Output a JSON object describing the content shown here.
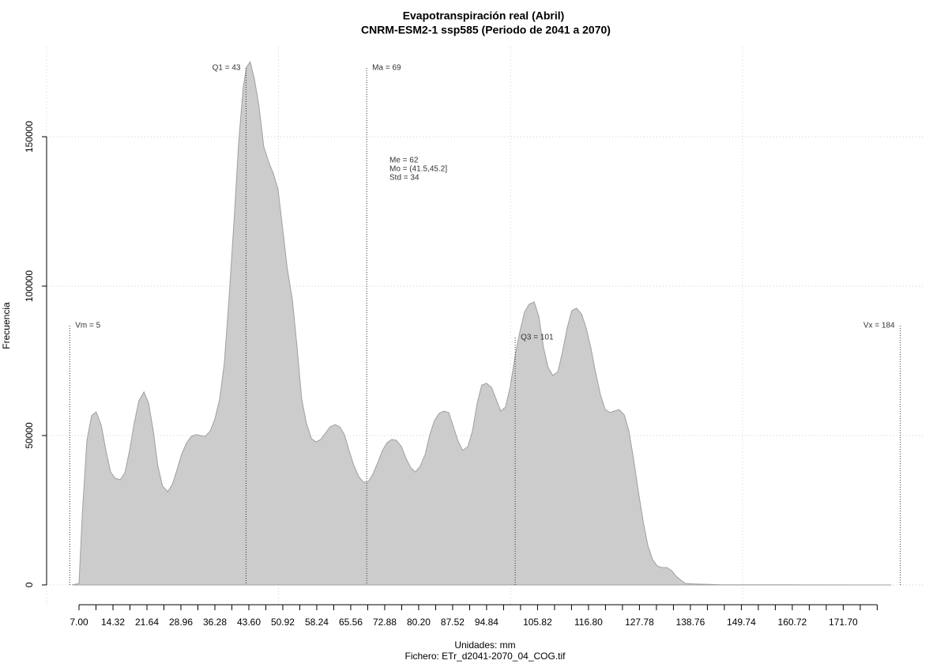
{
  "chart_data": {
    "type": "area",
    "title": "Evapotranspiración real (Abril)",
    "subtitle": "CNRM-ESM2-1 ssp585 (Periodo de 2041 a 2070)",
    "xlabel": "Unidades: mm",
    "caption": "Fichero: ETr_d2041-2070_04_COG.tif",
    "ylabel": "Frecuencia",
    "color": "#cccccc",
    "line_color": "#a0a0a0",
    "xlim": [
      0,
      189
    ],
    "ylim": [
      -6600,
      180000
    ],
    "yticks": [
      0,
      50000,
      100000,
      150000
    ],
    "xticks": [
      {
        "value": 7,
        "label": "7.00"
      },
      {
        "value": 14.32,
        "label": "14.32"
      },
      {
        "value": 21.64,
        "label": "21.64"
      },
      {
        "value": 28.96,
        "label": "28.96"
      },
      {
        "value": 36.28,
        "label": "36.28"
      },
      {
        "value": 43.6,
        "label": "43.60"
      },
      {
        "value": 50.92,
        "label": "50.92"
      },
      {
        "value": 58.24,
        "label": "58.24"
      },
      {
        "value": 65.56,
        "label": "65.56"
      },
      {
        "value": 72.88,
        "label": "72.88"
      },
      {
        "value": 80.2,
        "label": "80.20"
      },
      {
        "value": 87.52,
        "label": "87.52"
      },
      {
        "value": 94.84,
        "label": "94.84"
      },
      {
        "value": 105.82,
        "label": "105.82"
      },
      {
        "value": 116.8,
        "label": "116.80"
      },
      {
        "value": 127.78,
        "label": "127.78"
      },
      {
        "value": 138.76,
        "label": "138.76"
      },
      {
        "value": 149.74,
        "label": "149.74"
      },
      {
        "value": 160.72,
        "label": "160.72"
      },
      {
        "value": 171.7,
        "label": "171.70"
      }
    ],
    "xticks_minor": [
      10.66,
      17.98,
      25.3,
      32.62,
      39.94,
      47.26,
      54.58,
      61.9,
      69.22,
      76.54,
      83.86,
      91.18,
      98.5,
      102.16,
      109.48,
      113.14,
      120.46,
      124.12,
      131.44,
      135.1,
      142.42,
      146.08,
      153.4,
      157.06,
      164.38,
      168.04,
      175.36,
      179.02
    ],
    "xgrid": [
      0,
      50,
      100,
      150
    ],
    "grid": true,
    "x": [
      5.5,
      7.0,
      7.7,
      8.7,
      9.7,
      10.7,
      11.8,
      12.8,
      13.8,
      14.8,
      15.9,
      16.9,
      17.9,
      18.9,
      19.9,
      21.0,
      22.0,
      23.0,
      24.0,
      25.0,
      26.1,
      27.1,
      28.1,
      29.1,
      30.2,
      31.2,
      32.2,
      33.2,
      34.2,
      35.3,
      36.3,
      37.3,
      38.3,
      39.3,
      40.4,
      41.4,
      42.4,
      43.1,
      43.9,
      44.8,
      45.8,
      46.8,
      47.9,
      48.9,
      49.9,
      50.9,
      51.9,
      53.0,
      54.0,
      55.0,
      56.0,
      57.1,
      58.1,
      59.1,
      60.1,
      61.1,
      62.2,
      63.2,
      64.2,
      65.2,
      66.2,
      67.3,
      68.3,
      69.3,
      70.3,
      71.4,
      72.4,
      73.4,
      74.4,
      75.4,
      76.5,
      77.5,
      78.5,
      79.5,
      80.5,
      81.6,
      82.6,
      83.6,
      84.6,
      85.6,
      86.7,
      87.7,
      88.7,
      89.7,
      90.8,
      91.8,
      92.8,
      93.8,
      94.8,
      95.9,
      96.9,
      97.9,
      98.9,
      99.9,
      101.0,
      102.0,
      103.0,
      104.0,
      105.1,
      106.1,
      107.1,
      108.1,
      109.1,
      110.2,
      111.2,
      112.2,
      113.2,
      114.2,
      115.3,
      116.3,
      117.3,
      118.3,
      119.4,
      120.4,
      121.4,
      122.4,
      123.4,
      124.5,
      125.5,
      126.5,
      127.5,
      128.6,
      129.6,
      130.6,
      131.6,
      132.6,
      133.7,
      134.7,
      135.7,
      136.7,
      137.7,
      139.8,
      144.9,
      160.2,
      182.0
    ],
    "values": [
      0,
      500,
      23300,
      48400,
      56600,
      57900,
      53400,
      45000,
      37800,
      35700,
      35200,
      37600,
      45000,
      54200,
      61600,
      64600,
      60800,
      51600,
      39700,
      33100,
      31200,
      33600,
      38400,
      43700,
      47600,
      49700,
      50300,
      50000,
      49700,
      51600,
      55600,
      62200,
      74100,
      95200,
      121700,
      148100,
      166700,
      173300,
      175100,
      169300,
      160100,
      146800,
      141500,
      137600,
      132300,
      119000,
      105800,
      95200,
      79400,
      62200,
      54200,
      48900,
      47900,
      48700,
      50800,
      52900,
      53700,
      52900,
      50300,
      45000,
      40200,
      36200,
      34400,
      34400,
      37000,
      41000,
      45000,
      47600,
      48700,
      48400,
      46300,
      42300,
      39200,
      37800,
      39700,
      43700,
      50300,
      55000,
      57400,
      58200,
      57700,
      52900,
      48100,
      45000,
      46300,
      51600,
      60800,
      66900,
      67500,
      66100,
      62200,
      58200,
      59500,
      66100,
      76700,
      84700,
      91300,
      93900,
      94700,
      89900,
      79400,
      72800,
      70100,
      71400,
      78000,
      86000,
      91800,
      92600,
      90700,
      86000,
      79400,
      71400,
      63500,
      58700,
      57700,
      58200,
      58700,
      56900,
      51600,
      42300,
      31700,
      21200,
      13200,
      8500,
      6300,
      5800,
      5800,
      4800,
      2900,
      1600,
      500,
      300,
      100,
      50,
      0
    ],
    "annotations": [
      {
        "label": "Vm = 5",
        "value": 5
      },
      {
        "label": "Q1 = 43",
        "value": 43
      },
      {
        "label": "Ma = 69",
        "value": 69
      },
      {
        "label": "Q3 = 101",
        "value": 101
      },
      {
        "label": "Vx = 184",
        "value": 184
      }
    ],
    "stats": [
      "Me = 62",
      "Mo = (41.5,45.2]",
      "Std = 34"
    ]
  }
}
